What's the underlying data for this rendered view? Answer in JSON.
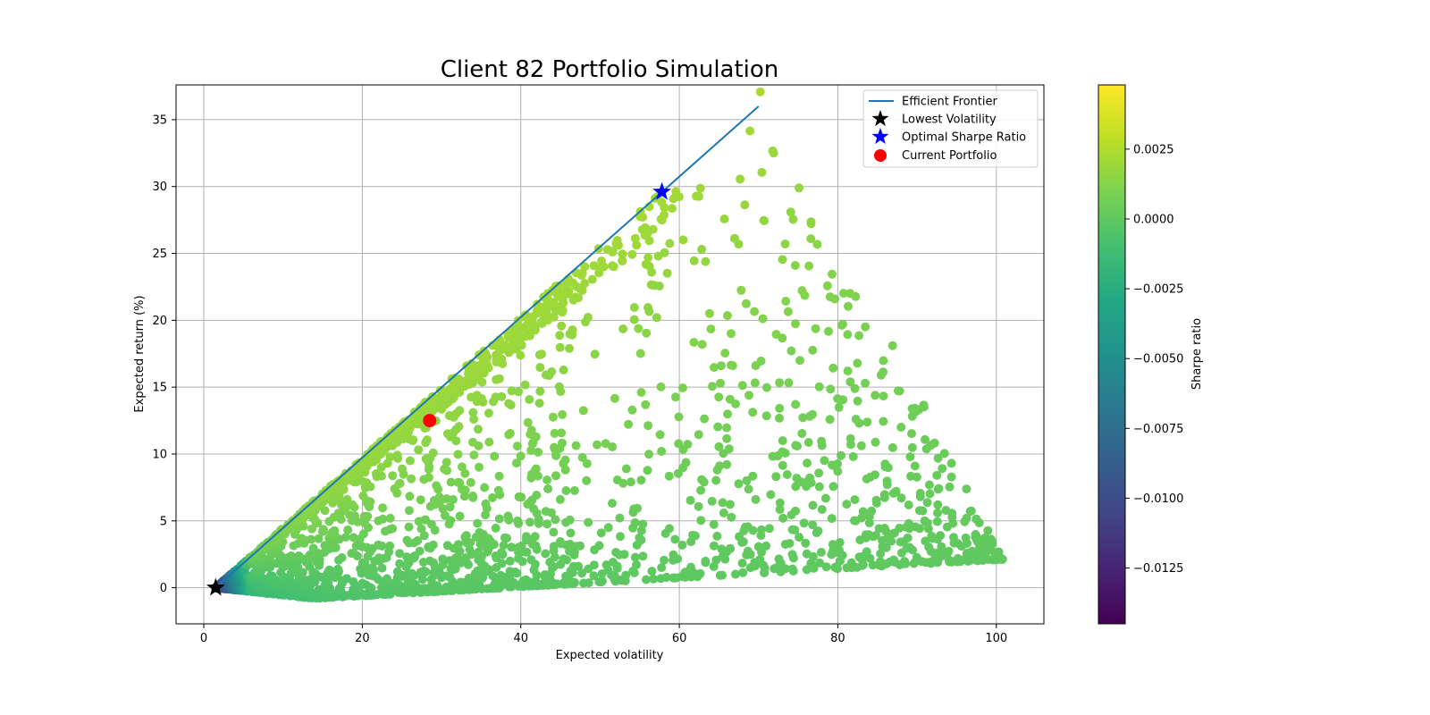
{
  "chart_data": {
    "type": "scatter",
    "title": "Client 82 Portfolio Simulation",
    "xlabel": "Expected volatility",
    "ylabel": "Expected return (%)",
    "xlim": [
      -3.5,
      106
    ],
    "ylim": [
      -2.7,
      37.6
    ],
    "xticks": [
      0,
      20,
      40,
      60,
      80,
      100
    ],
    "yticks": [
      0,
      5,
      10,
      15,
      20,
      25,
      30,
      35
    ],
    "grid": true,
    "legend_position": "top-right",
    "colormap": "viridis",
    "colorbar": {
      "label": "Sharpe ratio",
      "range": [
        -0.0145,
        0.0048
      ],
      "ticks": [
        -0.0125,
        -0.01,
        -0.0075,
        -0.005,
        -0.0025,
        0.0,
        0.0025
      ],
      "tick_labels": [
        "−0.0125",
        "−0.0100",
        "−0.0075",
        "−0.0050",
        "−0.0025",
        "0.0000",
        "0.0025"
      ]
    },
    "series": [
      {
        "name": "Efficient Frontier",
        "kind": "line",
        "color": "#1f77b4",
        "x": [
          1.5,
          70.0
        ],
        "y": [
          0.0,
          36.0
        ]
      },
      {
        "name": "Lowest Volatility",
        "kind": "star",
        "color": "#000000",
        "x": [
          1.5
        ],
        "y": [
          0.0
        ]
      },
      {
        "name": "Optimal Sharpe Ratio",
        "kind": "star",
        "color": "#0000ff",
        "x": [
          57.8
        ],
        "y": [
          29.6
        ]
      },
      {
        "name": "Current Portfolio",
        "kind": "circle",
        "color": "#ff0000",
        "x": [
          28.5
        ],
        "y": [
          12.5
        ]
      }
    ],
    "simulated_portfolios": {
      "count": 2600,
      "x_range": [
        1.5,
        100.8
      ],
      "y_range": [
        -0.8,
        36.0
      ],
      "bounds": "return between ~0 and the efficient frontier; lower band rises from ~0 near x=14 to ~2 at x=100"
    }
  }
}
